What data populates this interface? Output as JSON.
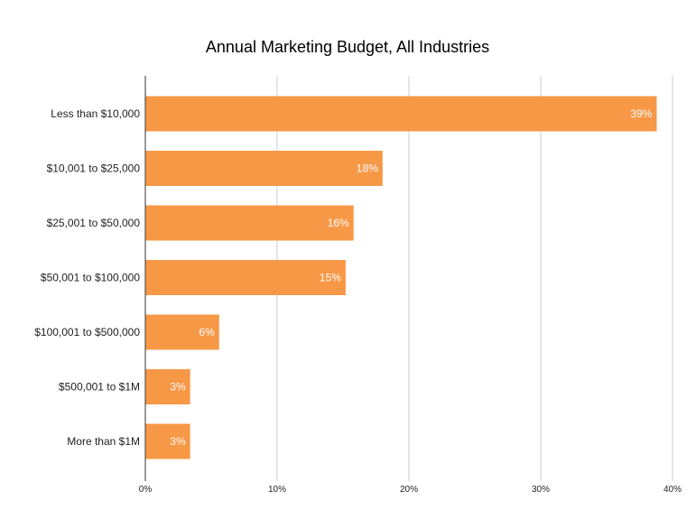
{
  "chart_data": {
    "type": "bar",
    "orientation": "horizontal",
    "title": "Annual Marketing Budget, All Industries",
    "categories": [
      "Less than $10,000",
      "$10,001 to $25,000",
      "$25,001 to $50,000",
      "$50,001 to $100,000",
      "$100,001 to $500,000",
      "$500,001 to $1M",
      "More than $1M"
    ],
    "values": [
      38.8,
      18.0,
      15.8,
      15.2,
      5.6,
      3.4,
      3.4
    ],
    "data_labels": [
      "39%",
      "18%",
      "16%",
      "15%",
      "6%",
      "3%",
      "3%"
    ],
    "x_ticks": [
      0,
      10,
      20,
      30,
      40
    ],
    "x_tick_labels": [
      "0%",
      "10%",
      "20%",
      "30%",
      "40%"
    ],
    "xlim": [
      0,
      40
    ],
    "grid": true,
    "legend": "none",
    "bar_color": "#f79847",
    "grid_color": "#cccccc",
    "axis_color": "#333333"
  }
}
